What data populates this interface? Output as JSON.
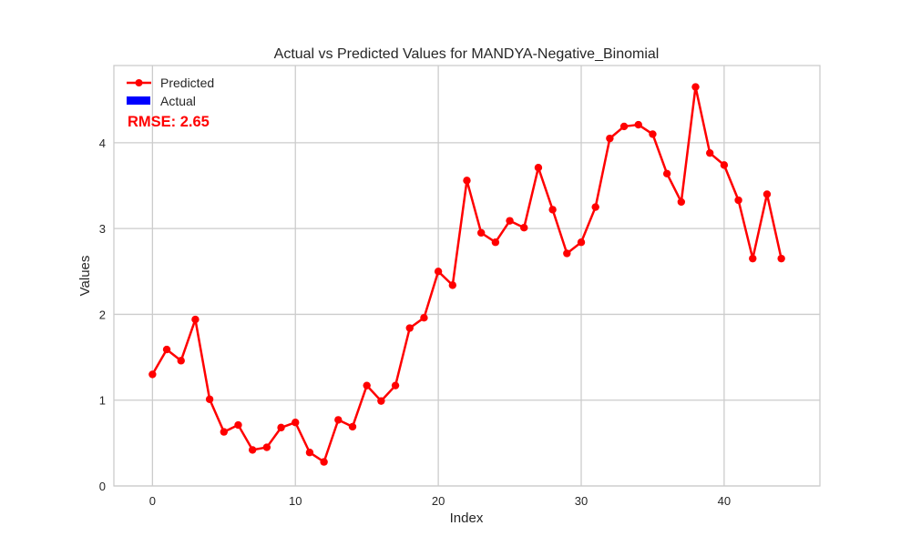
{
  "chart_data": {
    "type": "line",
    "title": "Actual vs Predicted Values for MANDYA-Negative_Binomial",
    "xlabel": "Index",
    "ylabel": "Values",
    "xlim": [
      -2.7,
      46.7
    ],
    "ylim": [
      0,
      4.9
    ],
    "xticks": [
      0,
      10,
      20,
      30,
      40
    ],
    "yticks": [
      0,
      1,
      2,
      3,
      4
    ],
    "grid": true,
    "legend_position": "top-left",
    "annotation": "RMSE: 2.65",
    "series": [
      {
        "name": "Predicted",
        "style": "line-marker",
        "color": "#ff0000",
        "x": [
          0,
          1,
          2,
          3,
          4,
          5,
          6,
          7,
          8,
          9,
          10,
          11,
          12,
          13,
          14,
          15,
          16,
          17,
          18,
          19,
          20,
          21,
          22,
          23,
          24,
          25,
          26,
          27,
          28,
          29,
          30,
          31,
          32,
          33,
          34,
          35,
          36,
          37,
          38,
          39,
          40,
          41,
          42,
          43,
          44
        ],
        "values": [
          1.3,
          1.59,
          1.46,
          1.94,
          1.01,
          0.63,
          0.71,
          0.42,
          0.45,
          0.68,
          0.74,
          0.39,
          0.28,
          0.77,
          0.69,
          1.17,
          0.99,
          1.17,
          1.84,
          1.96,
          2.5,
          2.34,
          3.56,
          2.95,
          2.84,
          3.09,
          3.01,
          3.71,
          3.22,
          2.71,
          2.84,
          3.25,
          4.05,
          4.19,
          4.21,
          4.1,
          3.64,
          3.31,
          4.65,
          3.88,
          3.74,
          3.33,
          2.65,
          3.4,
          2.65
        ]
      },
      {
        "name": "Actual",
        "style": "bar",
        "color": "#0000ff",
        "x": [],
        "values": []
      }
    ]
  }
}
